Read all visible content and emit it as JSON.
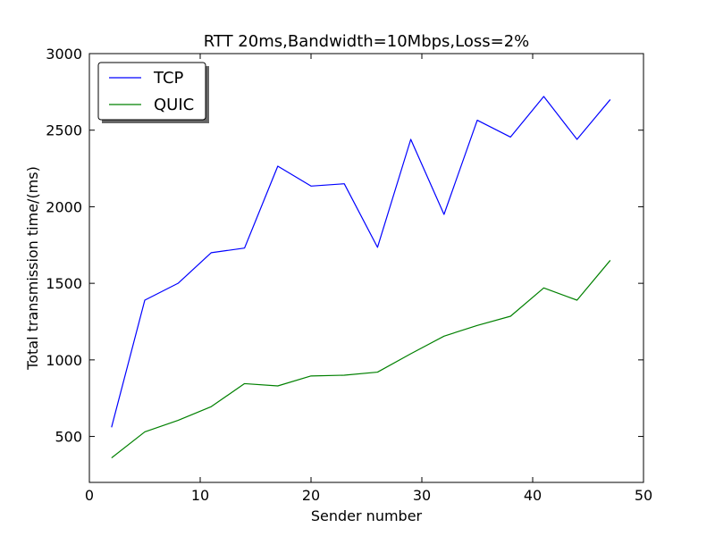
{
  "chart_data": {
    "type": "line",
    "title": "RTT 20ms,Bandwidth=10Mbps,Loss=2%",
    "xlabel": "Sender number",
    "ylabel": "Total transmission time/(ms)",
    "xlim": [
      0,
      50
    ],
    "ylim": [
      200,
      3000
    ],
    "xticks": [
      0,
      10,
      20,
      30,
      40,
      50
    ],
    "yticks": [
      500,
      1000,
      1500,
      2000,
      2500,
      3000
    ],
    "grid": false,
    "legend_position": "top-left",
    "x": [
      2,
      5,
      8,
      11,
      14,
      17,
      20,
      23,
      26,
      29,
      32,
      35,
      38,
      41,
      44,
      47
    ],
    "series": [
      {
        "name": "TCP",
        "color": "#0000ff",
        "values": [
          560,
          1390,
          1500,
          1700,
          1730,
          2265,
          2135,
          2150,
          1735,
          2440,
          1950,
          2565,
          2455,
          2720,
          2440,
          2700
        ]
      },
      {
        "name": "QUIC",
        "color": "#008000",
        "values": [
          360,
          530,
          605,
          695,
          845,
          830,
          895,
          900,
          920,
          1040,
          1155,
          1225,
          1285,
          1470,
          1390,
          1650
        ]
      }
    ]
  }
}
